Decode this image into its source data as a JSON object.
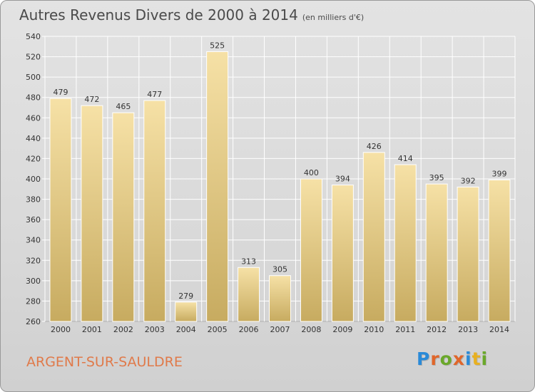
{
  "title": "Autres Revenus Divers de 2000 à 2014",
  "title_unit": "(en milliers d'€)",
  "city": "ARGENT-SUR-SAULDRE",
  "logo": {
    "text": "Proxiti",
    "letter_colors": [
      "#2a8ad8",
      "#e0662a",
      "#6aa82a",
      "#e0662a",
      "#2a8ad8",
      "#e8b020",
      "#6aa82a"
    ]
  },
  "colors": {
    "bar_light": "#f6e1a6",
    "bar_dark": "#c7ab60",
    "grid": "#ffffff",
    "text": "#333333",
    "city": "#e07a4a"
  },
  "chart_data": {
    "type": "bar",
    "categories": [
      "2000",
      "2001",
      "2002",
      "2003",
      "2004",
      "2005",
      "2006",
      "2007",
      "2008",
      "2009",
      "2010",
      "2011",
      "2012",
      "2013",
      "2014"
    ],
    "values": [
      479,
      472,
      465,
      477,
      279,
      525,
      313,
      305,
      400,
      394,
      426,
      414,
      395,
      392,
      399
    ],
    "title": "Autres Revenus Divers de 2000 à 2014",
    "ylim": [
      260,
      540
    ],
    "yticks": [
      260,
      280,
      300,
      320,
      340,
      360,
      380,
      400,
      420,
      440,
      460,
      480,
      500,
      520,
      540
    ],
    "grid": true,
    "data_labels": true
  }
}
